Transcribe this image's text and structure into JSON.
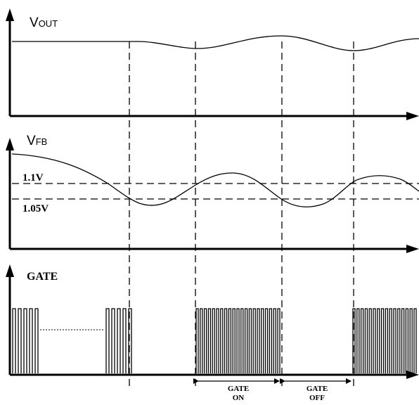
{
  "panels": {
    "vout": {
      "label_main": "V",
      "label_sub": "OUT"
    },
    "vfb": {
      "label_main": "V",
      "label_sub": "FB",
      "threshold_high": "1.1V",
      "threshold_low": "1.05V"
    },
    "gate": {
      "label": "GATE"
    }
  },
  "annotations": {
    "gate_on": {
      "line1": "GATE",
      "line2": "ON"
    },
    "gate_off": {
      "line1": "GATE",
      "line2": "OFF"
    }
  }
}
